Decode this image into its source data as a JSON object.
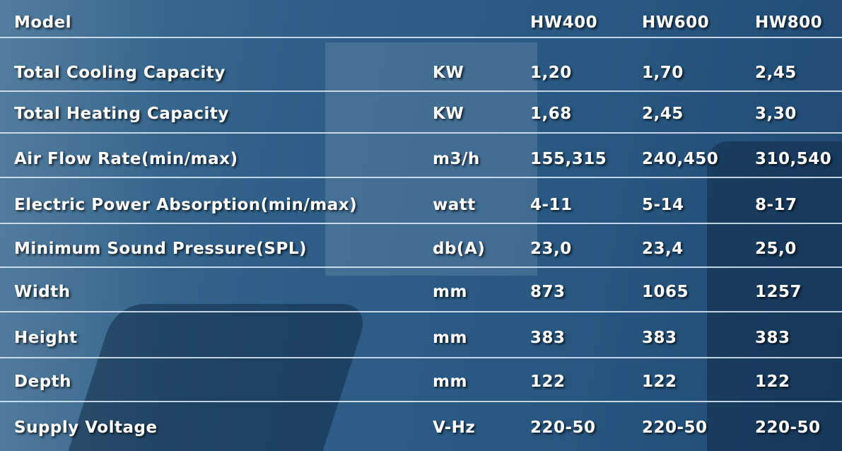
{
  "table": {
    "header": {
      "label": "Model",
      "models": [
        "HW400",
        "HW600",
        "HW800"
      ]
    },
    "rows": [
      {
        "label": "Total Cooling Capacity",
        "unit": "KW",
        "values": [
          "1,20",
          "1,70",
          "2,45"
        ]
      },
      {
        "label": "Total Heating Capacity",
        "unit": "KW",
        "values": [
          "1,68",
          "2,45",
          "3,30"
        ]
      },
      {
        "label": "Air Flow Rate(min/max)",
        "unit": "m3/h",
        "values": [
          "155,315",
          "240,450",
          "310,540"
        ]
      },
      {
        "label": "Electric Power Absorption(min/max)",
        "unit": "watt",
        "values": [
          "4-11",
          "5-14",
          "8-17"
        ]
      },
      {
        "label": "Minimum Sound Pressure(SPL)",
        "unit": "db(A)",
        "values": [
          "23,0",
          "23,4",
          "25,0"
        ]
      },
      {
        "label": "Width",
        "unit": "mm",
        "values": [
          "873",
          "1065",
          "1257"
        ]
      },
      {
        "label": "Height",
        "unit": "mm",
        "values": [
          "383",
          "383",
          "383"
        ]
      },
      {
        "label": "Depth",
        "unit": "mm",
        "values": [
          "122",
          "122",
          "122"
        ]
      },
      {
        "label": "Supply Voltage",
        "unit": "V-Hz",
        "values": [
          "220-50",
          "220-50",
          "220-50"
        ]
      }
    ]
  }
}
